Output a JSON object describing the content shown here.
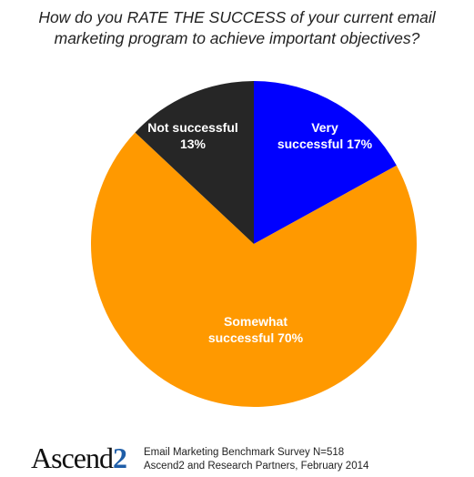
{
  "title_lines": [
    "How do you RATE THE SUCCESS of your current email",
    "marketing program to achieve important objectives?"
  ],
  "chart_data": {
    "type": "pie",
    "start": "12 o'clock",
    "direction": "clockwise",
    "legend": "none",
    "slices": [
      {
        "label_lines": [
          "Very",
          "successful 17%"
        ],
        "value": 17,
        "color": "#0000ff"
      },
      {
        "label_lines": [
          "Somewhat",
          "successful 70%"
        ],
        "value": 70,
        "color": "#ff9900"
      },
      {
        "label_lines": [
          "Not successful",
          "13%"
        ],
        "value": 13,
        "color": "#262626"
      }
    ]
  },
  "footer": {
    "logo_text": "Ascend",
    "logo_suffix": "2",
    "source_lines": [
      "Email Marketing Benchmark Survey N=518",
      "Ascend2 and Research Partners, February 2014"
    ]
  }
}
